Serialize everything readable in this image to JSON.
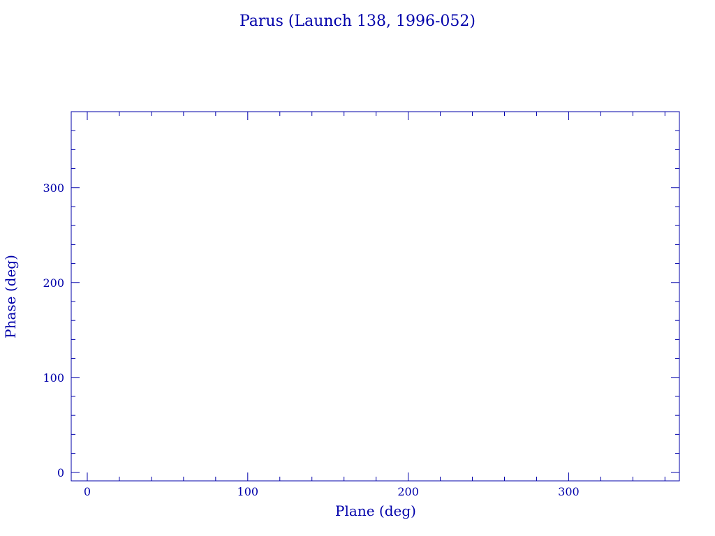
{
  "chart_data": {
    "type": "scatter",
    "title": "Parus (Launch 138, 1996-052)",
    "xlabel": "Plane (deg)",
    "ylabel": "Phase (deg)",
    "xlim": [
      -10,
      369
    ],
    "ylim": [
      -9,
      380
    ],
    "xticks": [
      0,
      100,
      200,
      300
    ],
    "yticks": [
      0,
      100,
      200,
      300
    ],
    "x_minor_step": 20,
    "y_minor_step": 20,
    "grid": false,
    "series": [],
    "color": "#0000aa"
  }
}
